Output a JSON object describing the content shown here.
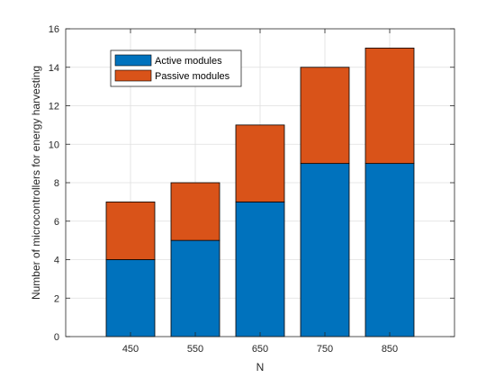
{
  "chart_data": {
    "type": "bar",
    "stacked": true,
    "categories": [
      "450",
      "550",
      "650",
      "750",
      "850"
    ],
    "series": [
      {
        "name": "Active modules",
        "values": [
          4,
          5,
          7,
          9,
          9
        ],
        "color": "#0072BD"
      },
      {
        "name": "Passive modules",
        "values": [
          3,
          3,
          4,
          5,
          6
        ],
        "color": "#D95319"
      }
    ],
    "title": "",
    "xlabel": "N",
    "ylabel": "Number of microcontrollers for energy harvesting",
    "ylim": [
      0,
      16
    ],
    "yticks": [
      0,
      2,
      4,
      6,
      8,
      10,
      12,
      14,
      16
    ],
    "xlim": [
      350,
      950
    ],
    "grid": true,
    "legend_position": "top-left"
  }
}
